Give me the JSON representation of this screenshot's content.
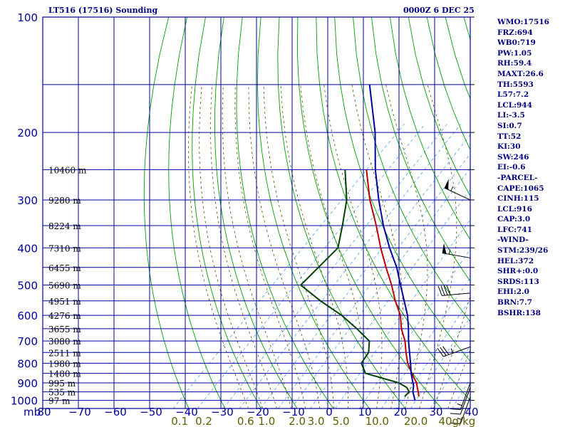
{
  "header": {
    "title": "LT516 (17516) Sounding",
    "datetime": "0000Z  6 DEC 25"
  },
  "indices": [
    "WMO:17516",
    "FRZ:694",
    "WB0:719",
    "PW:1.05",
    "RH:59.4",
    "MAXT:26.6",
    "TH:5593",
    "L57:7.2",
    "LCL:944",
    "LI:-3.5",
    "SI:0.7",
    "TT:52",
    "KI:30",
    "SW:246",
    "EI:-0.6",
    "-PARCEL-",
    "CAPE:1065",
    "CINH:115",
    "LCL:916",
    "CAP:3.0",
    "LFC:741",
    "-WIND-",
    "STM:239/26",
    "HEL:372",
    "SHR+:0.0",
    "SRDS:113",
    "EHI:2.0",
    "BRN:7.7",
    "BSHR:138"
  ],
  "colors": {
    "background": "#ffffff",
    "grid": "#0000a0",
    "dry_adiabat": "#00a000",
    "moist_adiabat": "#505000",
    "mixing_ratio": "#4aa0ff",
    "temperature": "#c00000",
    "dewpoint": "#004000",
    "parcel": "#0000a0",
    "label_blue": "#0000a0",
    "label_olive": "#606000",
    "text": "#000080"
  },
  "chart_data": {
    "type": "line",
    "chart_kind": "skew-T log-P sounding",
    "pressure_axis": {
      "label": "mb",
      "scale": "log",
      "range": [
        1000,
        100
      ],
      "ticks": [
        100,
        200,
        300,
        400,
        500,
        600,
        700,
        800,
        900,
        1000
      ]
    },
    "temperature_axis": {
      "range": [
        -80,
        40
      ],
      "ticks": [
        -80,
        -70,
        -60,
        -50,
        -40,
        -30,
        -20,
        -10,
        0,
        10,
        20,
        30,
        40
      ],
      "tick_labels": [
        "80",
        "−70",
        "−60",
        "−50",
        "−40",
        "−30",
        "−20",
        "−10",
        "0",
        "10",
        "20",
        "30",
        "40"
      ]
    },
    "mixing_ratio_axis": {
      "unit": "g/kg",
      "values": [
        0.1,
        0.2,
        0.6,
        1.0,
        2.0,
        3.0,
        5.0,
        10.0,
        20.0,
        40.0
      ],
      "tick_labels": [
        "0.1",
        "0.2",
        "0.6",
        "1.0",
        "2.0",
        "3.0",
        "5.0",
        "10.0",
        "20.0",
        "40g/kg"
      ]
    },
    "height_labels": [
      {
        "p": 250,
        "label": "10460 m"
      },
      {
        "p": 300,
        "label": "9280 m"
      },
      {
        "p": 350,
        "label": "8224 m"
      },
      {
        "p": 400,
        "label": "7310 m"
      },
      {
        "p": 450,
        "label": "6455 m"
      },
      {
        "p": 500,
        "label": "5690 m"
      },
      {
        "p": 550,
        "label": "4951 m"
      },
      {
        "p": 600,
        "label": "4276 m"
      },
      {
        "p": 650,
        "label": "3655 m"
      },
      {
        "p": 700,
        "label": "3080 m"
      },
      {
        "p": 750,
        "label": "2511 m"
      },
      {
        "p": 800,
        "label": "1980 m"
      },
      {
        "p": 850,
        "label": "1480 m"
      },
      {
        "p": 900,
        "label": "995 m"
      },
      {
        "p": 950,
        "label": "535 m"
      },
      {
        "p": 1000,
        "label": "97 m"
      }
    ],
    "series": [
      {
        "key": "temperature",
        "p": [
          977,
          950,
          925,
          900,
          850,
          800,
          750,
          700,
          650,
          600,
          550,
          500,
          450,
          400,
          350,
          300,
          250
        ],
        "t": [
          24.5,
          23.0,
          21.5,
          20.0,
          16.0,
          12.0,
          8.5,
          5.0,
          0.5,
          -3.5,
          -9.0,
          -14.5,
          -21.0,
          -28.0,
          -35.5,
          -44.5,
          -54.0
        ]
      },
      {
        "key": "dewpoint",
        "p": [
          977,
          950,
          925,
          900,
          850,
          800,
          750,
          700,
          650,
          600,
          550,
          500,
          450,
          400,
          350,
          300,
          250
        ],
        "t": [
          20.5,
          20.5,
          18.5,
          15.0,
          3.0,
          -1.0,
          -2.0,
          -5.0,
          -12.0,
          -20.0,
          -30.0,
          -40.0,
          -40.0,
          -40.0,
          -45.0,
          -51.0,
          -60.0
        ]
      },
      {
        "key": "parcel",
        "p": [
          1000,
          950,
          916,
          900,
          850,
          800,
          750,
          700,
          650,
          600,
          550,
          500,
          450,
          400,
          350,
          300,
          250,
          200,
          150
        ],
        "t": [
          24.5,
          21.5,
          20.0,
          19.0,
          15.8,
          12.8,
          9.5,
          6.0,
          2.5,
          -1.5,
          -6.5,
          -12.0,
          -18.0,
          -25.5,
          -33.5,
          -42.0,
          -51.5,
          -62.0,
          -77.0
        ]
      }
    ],
    "wind_barbs": [
      {
        "p": 300,
        "dir": 295,
        "speed_kt": 55
      },
      {
        "p": 425,
        "dir": 280,
        "speed_kt": 55
      },
      {
        "p": 525,
        "dir": 265,
        "speed_kt": 40
      },
      {
        "p": 725,
        "dir": 250,
        "speed_kt": 35
      },
      {
        "p": 900,
        "dir": 200,
        "speed_kt": 15
      },
      {
        "p": 925,
        "dir": 200,
        "speed_kt": 10
      },
      {
        "p": 980,
        "dir": 200,
        "speed_kt": 15
      }
    ]
  }
}
